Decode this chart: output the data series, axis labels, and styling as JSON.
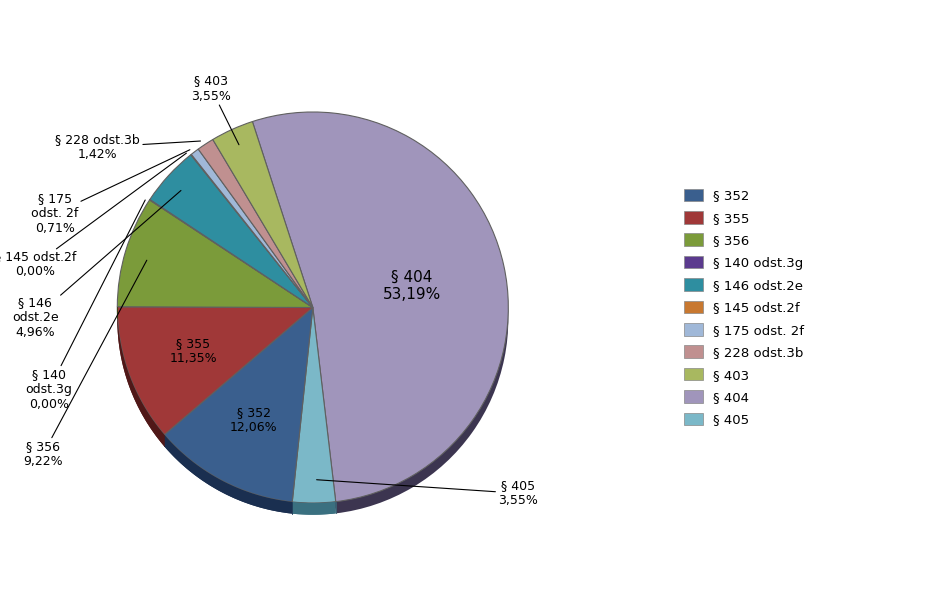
{
  "slices": [
    {
      "label": "§ 404",
      "pct": "53,19%",
      "value": 53.19,
      "color": "#A095BB",
      "dark_color": "#3C3550"
    },
    {
      "label": "§ 405",
      "pct": "3,55%",
      "value": 3.55,
      "color": "#7BB8C8",
      "dark_color": "#3A7080"
    },
    {
      "label": "§ 352",
      "pct": "12,06%",
      "value": 12.06,
      "color": "#3A5F8E",
      "dark_color": "#1A2F50"
    },
    {
      "label": "§ 355",
      "pct": "11,35%",
      "value": 11.35,
      "color": "#A03838",
      "dark_color": "#501818"
    },
    {
      "label": "§ 356",
      "pct": "9,22%",
      "value": 9.22,
      "color": "#7B9B3A",
      "dark_color": "#3A5010"
    },
    {
      "label": "§ 140 odst.3g",
      "pct": "0,00%",
      "value": 0.05,
      "color": "#5B3A8E",
      "dark_color": "#2A1050"
    },
    {
      "label": "§ 146 odst.2e",
      "pct": "4,96%",
      "value": 4.96,
      "color": "#2E8EA0",
      "dark_color": "#104858"
    },
    {
      "label": "§ 145 odst.2f",
      "pct": "0,00%",
      "value": 0.05,
      "color": "#C87830",
      "dark_color": "#703A08"
    },
    {
      "label": "§ 175 odst. 2f",
      "pct": "0,71%",
      "value": 0.71,
      "color": "#A0B8D8",
      "dark_color": "#506888"
    },
    {
      "label": "§ 228 odst.3b",
      "pct": "1,42%",
      "value": 1.42,
      "color": "#C09090",
      "dark_color": "#705050"
    },
    {
      "label": "§ 403",
      "pct": "3,55%",
      "value": 3.55,
      "color": "#A8B860",
      "dark_color": "#506018"
    }
  ],
  "legend_order": [
    {
      "§ 352": "#3A5F8E"
    },
    {
      "§ 355": "#A03838"
    },
    {
      "§ 356": "#7B9B3A"
    },
    {
      "§ 140 odst.3g": "#5B3A8E"
    },
    {
      "§ 146 odst.2e": "#2E8EA0"
    },
    {
      "§ 145 odst.2f": "#C87830"
    },
    {
      "§ 175 odst. 2f": "#A0B8D8"
    },
    {
      "§ 228 odst.3b": "#C09090"
    },
    {
      "§ 403": "#A8B860"
    },
    {
      "§ 404": "#A095BB"
    },
    {
      "§ 405": "#7BB8C8"
    }
  ],
  "background_color": "#FFFFFF",
  "startangle": 108.0,
  "depth": 0.06
}
